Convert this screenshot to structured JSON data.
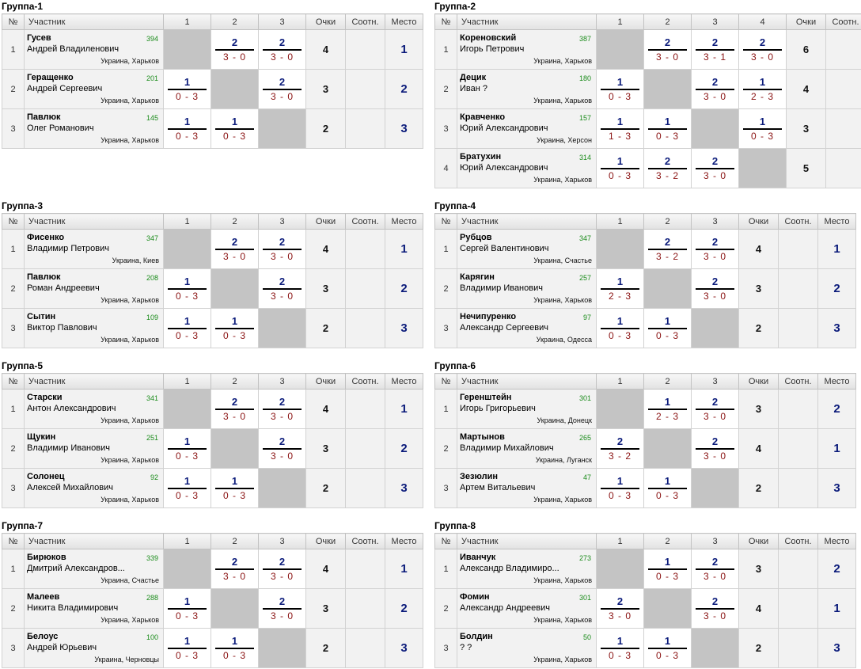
{
  "headers": {
    "num": "№",
    "participant": "Участник",
    "points": "Очки",
    "ratio": "Соотн.",
    "place": "Место"
  },
  "groups": [
    {
      "title": "Группа-1",
      "columns": [
        "1",
        "2",
        "3"
      ],
      "show_place": true,
      "rows": [
        {
          "num": "1",
          "name": "Гусев",
          "full": "Андрей Владиленович",
          "rating": "394",
          "loc": "Украина, Харьков",
          "games": [
            null,
            {
              "pts": "2",
              "score": "3 - 0"
            },
            {
              "pts": "2",
              "score": "3 - 0"
            }
          ],
          "points": "4",
          "ratio": "",
          "place": "1"
        },
        {
          "num": "2",
          "name": "Геращенко",
          "full": "Андрей Сергеевич",
          "rating": "201",
          "loc": "Украина, Харьков",
          "games": [
            {
              "pts": "1",
              "score": "0 - 3"
            },
            null,
            {
              "pts": "2",
              "score": "3 - 0"
            }
          ],
          "points": "3",
          "ratio": "",
          "place": "2"
        },
        {
          "num": "3",
          "name": "Павлюк",
          "full": "Олег Романович",
          "rating": "145",
          "loc": "Украина, Харьков",
          "games": [
            {
              "pts": "1",
              "score": "0 - 3"
            },
            {
              "pts": "1",
              "score": "0 - 3"
            },
            null
          ],
          "points": "2",
          "ratio": "",
          "place": "3"
        }
      ]
    },
    {
      "title": "Группа-2",
      "columns": [
        "1",
        "2",
        "3",
        "4"
      ],
      "show_place": false,
      "rows": [
        {
          "num": "1",
          "name": "Кореновский",
          "full": "Игорь Петрович",
          "rating": "387",
          "loc": "Украина, Харьков",
          "games": [
            null,
            {
              "pts": "2",
              "score": "3 - 0"
            },
            {
              "pts": "2",
              "score": "3 - 1"
            },
            {
              "pts": "2",
              "score": "3 - 0"
            }
          ],
          "points": "6",
          "ratio": "",
          "place": ""
        },
        {
          "num": "2",
          "name": "Децик",
          "full": "Иван ?",
          "rating": "180",
          "loc": "Украина, Харьков",
          "games": [
            {
              "pts": "1",
              "score": "0 - 3"
            },
            null,
            {
              "pts": "2",
              "score": "3 - 0"
            },
            {
              "pts": "1",
              "score": "2 - 3"
            }
          ],
          "points": "4",
          "ratio": "",
          "place": ""
        },
        {
          "num": "3",
          "name": "Кравченко",
          "full": "Юрий Александрович",
          "rating": "157",
          "loc": "Украина, Херсон",
          "games": [
            {
              "pts": "1",
              "score": "1 - 3"
            },
            {
              "pts": "1",
              "score": "0 - 3"
            },
            null,
            {
              "pts": "1",
              "score": "0 - 3"
            }
          ],
          "points": "3",
          "ratio": "",
          "place": ""
        },
        {
          "num": "4",
          "name": "Братухин",
          "full": "Юрий Александрович",
          "rating": "314",
          "loc": "Украина, Харьков",
          "games": [
            {
              "pts": "1",
              "score": "0 - 3"
            },
            {
              "pts": "2",
              "score": "3 - 2"
            },
            {
              "pts": "2",
              "score": "3 - 0"
            },
            null
          ],
          "points": "5",
          "ratio": "",
          "place": ""
        }
      ]
    },
    {
      "title": "Группа-3",
      "columns": [
        "1",
        "2",
        "3"
      ],
      "show_place": true,
      "rows": [
        {
          "num": "1",
          "name": "Фисенко",
          "full": "Владимир Петрович",
          "rating": "347",
          "loc": "Украина, Киев",
          "games": [
            null,
            {
              "pts": "2",
              "score": "3 - 0"
            },
            {
              "pts": "2",
              "score": "3 - 0"
            }
          ],
          "points": "4",
          "ratio": "",
          "place": "1"
        },
        {
          "num": "2",
          "name": "Павлюк",
          "full": "Роман Андреевич",
          "rating": "208",
          "loc": "Украина, Харьков",
          "games": [
            {
              "pts": "1",
              "score": "0 - 3"
            },
            null,
            {
              "pts": "2",
              "score": "3 - 0"
            }
          ],
          "points": "3",
          "ratio": "",
          "place": "2"
        },
        {
          "num": "3",
          "name": "Сытин",
          "full": "Виктор Павлович",
          "rating": "109",
          "loc": "Украина, Харьков",
          "games": [
            {
              "pts": "1",
              "score": "0 - 3"
            },
            {
              "pts": "1",
              "score": "0 - 3"
            },
            null
          ],
          "points": "2",
          "ratio": "",
          "place": "3"
        }
      ]
    },
    {
      "title": "Группа-4",
      "columns": [
        "1",
        "2",
        "3"
      ],
      "show_place": true,
      "rows": [
        {
          "num": "1",
          "name": "Рубцов",
          "full": "Сергей Валентинович",
          "rating": "347",
          "loc": "Украина, Счастье",
          "games": [
            null,
            {
              "pts": "2",
              "score": "3 - 2"
            },
            {
              "pts": "2",
              "score": "3 - 0"
            }
          ],
          "points": "4",
          "ratio": "",
          "place": "1"
        },
        {
          "num": "2",
          "name": "Карягин",
          "full": "Владимир Иванович",
          "rating": "257",
          "loc": "Украина, Харьков",
          "games": [
            {
              "pts": "1",
              "score": "2 - 3"
            },
            null,
            {
              "pts": "2",
              "score": "3 - 0"
            }
          ],
          "points": "3",
          "ratio": "",
          "place": "2"
        },
        {
          "num": "3",
          "name": "Нечипуренко",
          "full": "Александр Сергеевич",
          "rating": "97",
          "loc": "Украина, Одесса",
          "games": [
            {
              "pts": "1",
              "score": "0 - 3"
            },
            {
              "pts": "1",
              "score": "0 - 3"
            },
            null
          ],
          "points": "2",
          "ratio": "",
          "place": "3"
        }
      ]
    },
    {
      "title": "Группа-5",
      "columns": [
        "1",
        "2",
        "3"
      ],
      "show_place": true,
      "rows": [
        {
          "num": "1",
          "name": "Старски",
          "full": "Антон Александрович",
          "rating": "341",
          "loc": "Украина, Харьков",
          "games": [
            null,
            {
              "pts": "2",
              "score": "3 - 0"
            },
            {
              "pts": "2",
              "score": "3 - 0"
            }
          ],
          "points": "4",
          "ratio": "",
          "place": "1"
        },
        {
          "num": "2",
          "name": "Щукин",
          "full": "Владимир Иванович",
          "rating": "251",
          "loc": "Украина, Харьков",
          "games": [
            {
              "pts": "1",
              "score": "0 - 3"
            },
            null,
            {
              "pts": "2",
              "score": "3 - 0"
            }
          ],
          "points": "3",
          "ratio": "",
          "place": "2"
        },
        {
          "num": "3",
          "name": "Солонец",
          "full": "Алексей Михайлович",
          "rating": "92",
          "loc": "Украина, Харьков",
          "games": [
            {
              "pts": "1",
              "score": "0 - 3"
            },
            {
              "pts": "1",
              "score": "0 - 3"
            },
            null
          ],
          "points": "2",
          "ratio": "",
          "place": "3"
        }
      ]
    },
    {
      "title": "Группа-6",
      "columns": [
        "1",
        "2",
        "3"
      ],
      "show_place": true,
      "rows": [
        {
          "num": "1",
          "name": "Геренштейн",
          "full": "Игорь Григорьевич",
          "rating": "301",
          "loc": "Украина, Донецк",
          "games": [
            null,
            {
              "pts": "1",
              "score": "2 - 3"
            },
            {
              "pts": "2",
              "score": "3 - 0"
            }
          ],
          "points": "3",
          "ratio": "",
          "place": "2"
        },
        {
          "num": "2",
          "name": "Мартынов",
          "full": "Владимир Михайлович",
          "rating": "265",
          "loc": "Украина, Луганск",
          "games": [
            {
              "pts": "2",
              "score": "3 - 2"
            },
            null,
            {
              "pts": "2",
              "score": "3 - 0"
            }
          ],
          "points": "4",
          "ratio": "",
          "place": "1"
        },
        {
          "num": "3",
          "name": "Зезюлин",
          "full": "Артем Витальевич",
          "rating": "47",
          "loc": "Украина, Харьков",
          "games": [
            {
              "pts": "1",
              "score": "0 - 3"
            },
            {
              "pts": "1",
              "score": "0 - 3"
            },
            null
          ],
          "points": "2",
          "ratio": "",
          "place": "3"
        }
      ]
    },
    {
      "title": "Группа-7",
      "columns": [
        "1",
        "2",
        "3"
      ],
      "show_place": true,
      "rows": [
        {
          "num": "1",
          "name": "Бирюков",
          "full": "Дмитрий Александров...",
          "rating": "339",
          "loc": "Украина, Счастье",
          "games": [
            null,
            {
              "pts": "2",
              "score": "3 - 0"
            },
            {
              "pts": "2",
              "score": "3 - 0"
            }
          ],
          "points": "4",
          "ratio": "",
          "place": "1"
        },
        {
          "num": "2",
          "name": "Малеев",
          "full": "Никита Владимирович",
          "rating": "288",
          "loc": "Украина, Харьков",
          "games": [
            {
              "pts": "1",
              "score": "0 - 3"
            },
            null,
            {
              "pts": "2",
              "score": "3 - 0"
            }
          ],
          "points": "3",
          "ratio": "",
          "place": "2"
        },
        {
          "num": "3",
          "name": "Белоус",
          "full": "Андрей Юрьевич",
          "rating": "100",
          "loc": "Украина, Черновцы",
          "games": [
            {
              "pts": "1",
              "score": "0 - 3"
            },
            {
              "pts": "1",
              "score": "0 - 3"
            },
            null
          ],
          "points": "2",
          "ratio": "",
          "place": "3"
        }
      ]
    },
    {
      "title": "Группа-8",
      "columns": [
        "1",
        "2",
        "3"
      ],
      "show_place": true,
      "rows": [
        {
          "num": "1",
          "name": "Иванчук",
          "full": "Александр Владимиро...",
          "rating": "273",
          "loc": "Украина, Харьков",
          "games": [
            null,
            {
              "pts": "1",
              "score": "0 - 3"
            },
            {
              "pts": "2",
              "score": "3 - 0"
            }
          ],
          "points": "3",
          "ratio": "",
          "place": "2"
        },
        {
          "num": "2",
          "name": "Фомин",
          "full": "Александр Андреевич",
          "rating": "301",
          "loc": "Украина, Харьков",
          "games": [
            {
              "pts": "2",
              "score": "3 - 0"
            },
            null,
            {
              "pts": "2",
              "score": "3 - 0"
            }
          ],
          "points": "4",
          "ratio": "",
          "place": "1"
        },
        {
          "num": "3",
          "name": "Болдин",
          "full": "? ?",
          "rating": "50",
          "loc": "Украина, Харьков",
          "games": [
            {
              "pts": "1",
              "score": "0 - 3"
            },
            {
              "pts": "1",
              "score": "0 - 3"
            },
            null
          ],
          "points": "2",
          "ratio": "",
          "place": "3"
        }
      ]
    }
  ]
}
